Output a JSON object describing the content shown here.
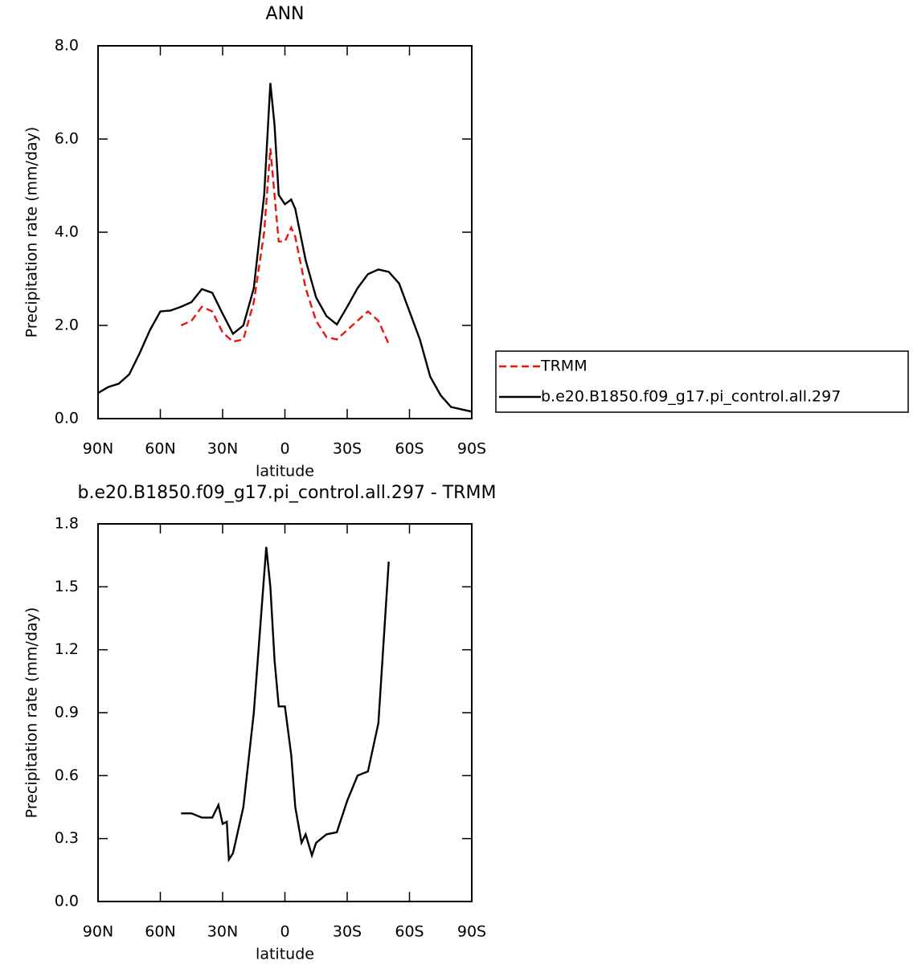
{
  "chart_data": [
    {
      "type": "line",
      "title": "ANN",
      "xlabel": "latitude",
      "ylabel": "Precipitation rate (mm/day)",
      "x": [
        90,
        85,
        80,
        75,
        70,
        65,
        60,
        55,
        50,
        45,
        40,
        35,
        30,
        25,
        20,
        15,
        10,
        7,
        5,
        3,
        0,
        -3,
        -5,
        -10,
        -15,
        -20,
        -25,
        -30,
        -35,
        -40,
        -45,
        -50,
        -55,
        -60,
        -65,
        -70,
        -75,
        -80,
        -85,
        -90
      ],
      "series": [
        {
          "name": "TRMM",
          "color": "#e8170e",
          "style": "dashed",
          "values": [
            null,
            null,
            null,
            null,
            null,
            null,
            null,
            null,
            2.0,
            2.1,
            2.4,
            2.3,
            1.85,
            1.65,
            1.7,
            2.5,
            4.0,
            5.8,
            4.8,
            3.8,
            3.8,
            4.1,
            3.9,
            2.8,
            2.1,
            1.75,
            1.7,
            1.9,
            2.1,
            2.3,
            2.1,
            1.6,
            null,
            null,
            null,
            null,
            null,
            null,
            null,
            null
          ]
        },
        {
          "name": "b.e20.B1850.f09_g17.pi_control.all.297",
          "color": "#000000",
          "style": "solid",
          "values": [
            0.55,
            0.68,
            0.75,
            0.95,
            1.4,
            1.9,
            2.3,
            2.32,
            2.4,
            2.5,
            2.78,
            2.7,
            2.25,
            1.82,
            2.0,
            2.8,
            4.8,
            7.2,
            6.3,
            4.8,
            4.6,
            4.7,
            4.5,
            3.4,
            2.6,
            2.2,
            2.02,
            2.4,
            2.8,
            3.1,
            3.2,
            3.15,
            2.9,
            2.3,
            1.7,
            0.9,
            0.5,
            0.25,
            0.2,
            0.15
          ]
        }
      ],
      "xlim": [
        90,
        -90
      ],
      "xticks": [
        {
          "value": 90,
          "label": "90N"
        },
        {
          "value": 60,
          "label": "60N"
        },
        {
          "value": 30,
          "label": "30N"
        },
        0,
        {
          "value": -30,
          "label": "30S"
        },
        {
          "value": -60,
          "label": "60S"
        },
        {
          "value": -90,
          "label": "90S"
        }
      ],
      "ylim": [
        0,
        8
      ],
      "yticks": [
        {
          "value": 0,
          "label": "0.0"
        },
        {
          "value": 2,
          "label": "2.0"
        },
        {
          "value": 4,
          "label": "4.0"
        },
        {
          "value": 6,
          "label": "6.0"
        },
        {
          "value": 8,
          "label": "8.0"
        }
      ],
      "legend": "right"
    },
    {
      "type": "line",
      "title": "b.e20.B1850.f09_g17.pi_control.all.297 - TRMM",
      "xlabel": "latitude",
      "ylabel": "Precipitation rate (mm/day)",
      "x": [
        50,
        45,
        40,
        35,
        32,
        30,
        28,
        27,
        25,
        20,
        15,
        9,
        7,
        5,
        3,
        0,
        -3,
        -5,
        -8,
        -10,
        -13,
        -15,
        -20,
        -25,
        -30,
        -35,
        -40,
        -45,
        -50
      ],
      "series": [
        {
          "color": "#000000",
          "style": "solid",
          "values": [
            0.42,
            0.42,
            0.4,
            0.4,
            0.46,
            0.37,
            0.38,
            0.2,
            0.23,
            0.45,
            0.9,
            1.69,
            1.5,
            1.15,
            0.93,
            0.93,
            0.7,
            0.45,
            0.28,
            0.32,
            0.22,
            0.28,
            0.32,
            0.33,
            0.48,
            0.6,
            0.62,
            0.85,
            1.62
          ]
        }
      ],
      "xlim": [
        90,
        -90
      ],
      "xticks": [
        {
          "value": 90,
          "label": "90N"
        },
        {
          "value": 60,
          "label": "60N"
        },
        {
          "value": 30,
          "label": "30N"
        },
        0,
        {
          "value": -30,
          "label": "30S"
        },
        {
          "value": -60,
          "label": "60S"
        },
        {
          "value": -90,
          "label": "90S"
        }
      ],
      "ylim": [
        0,
        1.8
      ],
      "yticks": [
        {
          "value": 0,
          "label": "0.0"
        },
        {
          "value": 0.3,
          "label": "0.3"
        },
        {
          "value": 0.6,
          "label": "0.6"
        },
        {
          "value": 0.9,
          "label": "0.9"
        },
        {
          "value": 1.2,
          "label": "1.2"
        },
        {
          "value": 1.5,
          "label": "1.5"
        },
        {
          "value": 1.8,
          "label": "1.8"
        }
      ]
    }
  ]
}
